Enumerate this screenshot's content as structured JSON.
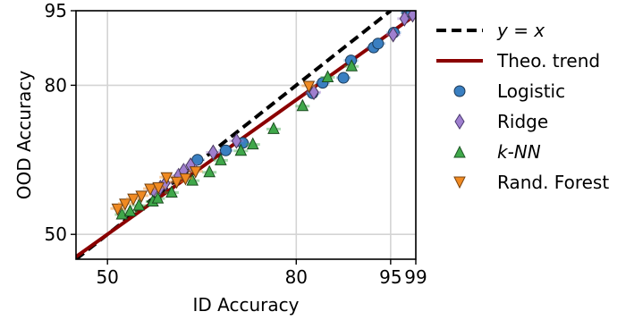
{
  "chart_data": {
    "type": "scatter",
    "xlabel": "ID Accuracy",
    "ylabel": "OOD Accuracy",
    "xlim": [
      45,
      99
    ],
    "ylim": [
      45,
      95
    ],
    "xticks": [
      "50",
      "80",
      "95",
      "99"
    ],
    "yticks": [
      "50",
      "80",
      "95"
    ],
    "grid": true,
    "legend_position": "outside-right",
    "legend": {
      "yx": "y = x",
      "theo": "Theo. trend",
      "logistic": "Logistic",
      "ridge": "Ridge",
      "knn": "k-NN",
      "rf": "Rand. Forest"
    },
    "reference_line": {
      "name": "y = x",
      "color": "#000000",
      "style": "dashed"
    },
    "trend_line": {
      "name": "Theo. trend",
      "color": "#8b0000",
      "x": [
        45,
        99
      ],
      "y": [
        45.5,
        94.2
      ]
    },
    "series": [
      {
        "name": "Logistic",
        "marker": "circle",
        "color": "#3a7fc1",
        "points": [
          [
            64.3,
            65.0
          ],
          [
            68.8,
            66.9
          ],
          [
            71.5,
            68.4
          ],
          [
            82.6,
            78.4
          ],
          [
            84.2,
            80.5
          ],
          [
            87.5,
            81.5
          ],
          [
            88.7,
            85.0
          ],
          [
            92.3,
            87.6
          ],
          [
            93.0,
            88.4
          ],
          [
            95.5,
            90.6
          ],
          [
            97.7,
            94.6
          ],
          [
            98.3,
            94.8
          ]
        ]
      },
      {
        "name": "Ridge",
        "marker": "diamond",
        "color": "#9f7fcf",
        "points": [
          [
            57.3,
            58.9
          ],
          [
            58.4,
            59.4
          ],
          [
            59.2,
            60.3
          ],
          [
            61.3,
            61.8
          ],
          [
            62.1,
            62.8
          ],
          [
            63.2,
            63.9
          ],
          [
            66.8,
            66.5
          ],
          [
            70.5,
            68.8
          ],
          [
            82.8,
            78.6
          ],
          [
            95.4,
            90.2
          ],
          [
            97.2,
            93.4
          ],
          [
            98.5,
            94.2
          ]
        ]
      },
      {
        "name": "k-NN",
        "marker": "triangle",
        "color": "#3fa84a",
        "points": [
          [
            52.3,
            54.0
          ],
          [
            53.6,
            54.6
          ],
          [
            55.0,
            55.8
          ],
          [
            57.2,
            56.6
          ],
          [
            58.0,
            57.2
          ],
          [
            60.2,
            58.4
          ],
          [
            63.5,
            60.8
          ],
          [
            66.2,
            62.5
          ],
          [
            68.0,
            64.9
          ],
          [
            71.2,
            66.8
          ],
          [
            73.1,
            68.1
          ],
          [
            76.4,
            71.2
          ],
          [
            81.0,
            75.8
          ],
          [
            85.0,
            81.6
          ],
          [
            88.8,
            83.8
          ]
        ]
      },
      {
        "name": "Rand. Forest",
        "marker": "triangle-down",
        "color": "#f08a22",
        "points": [
          [
            51.6,
            55.2
          ],
          [
            52.8,
            56.2
          ],
          [
            54.1,
            57.2
          ],
          [
            55.4,
            57.8
          ],
          [
            56.8,
            59.2
          ],
          [
            58.1,
            59.5
          ],
          [
            59.4,
            61.5
          ],
          [
            61.0,
            60.6
          ],
          [
            62.4,
            61.3
          ],
          [
            64.0,
            62.7
          ],
          [
            82.0,
            79.9
          ]
        ]
      }
    ]
  }
}
